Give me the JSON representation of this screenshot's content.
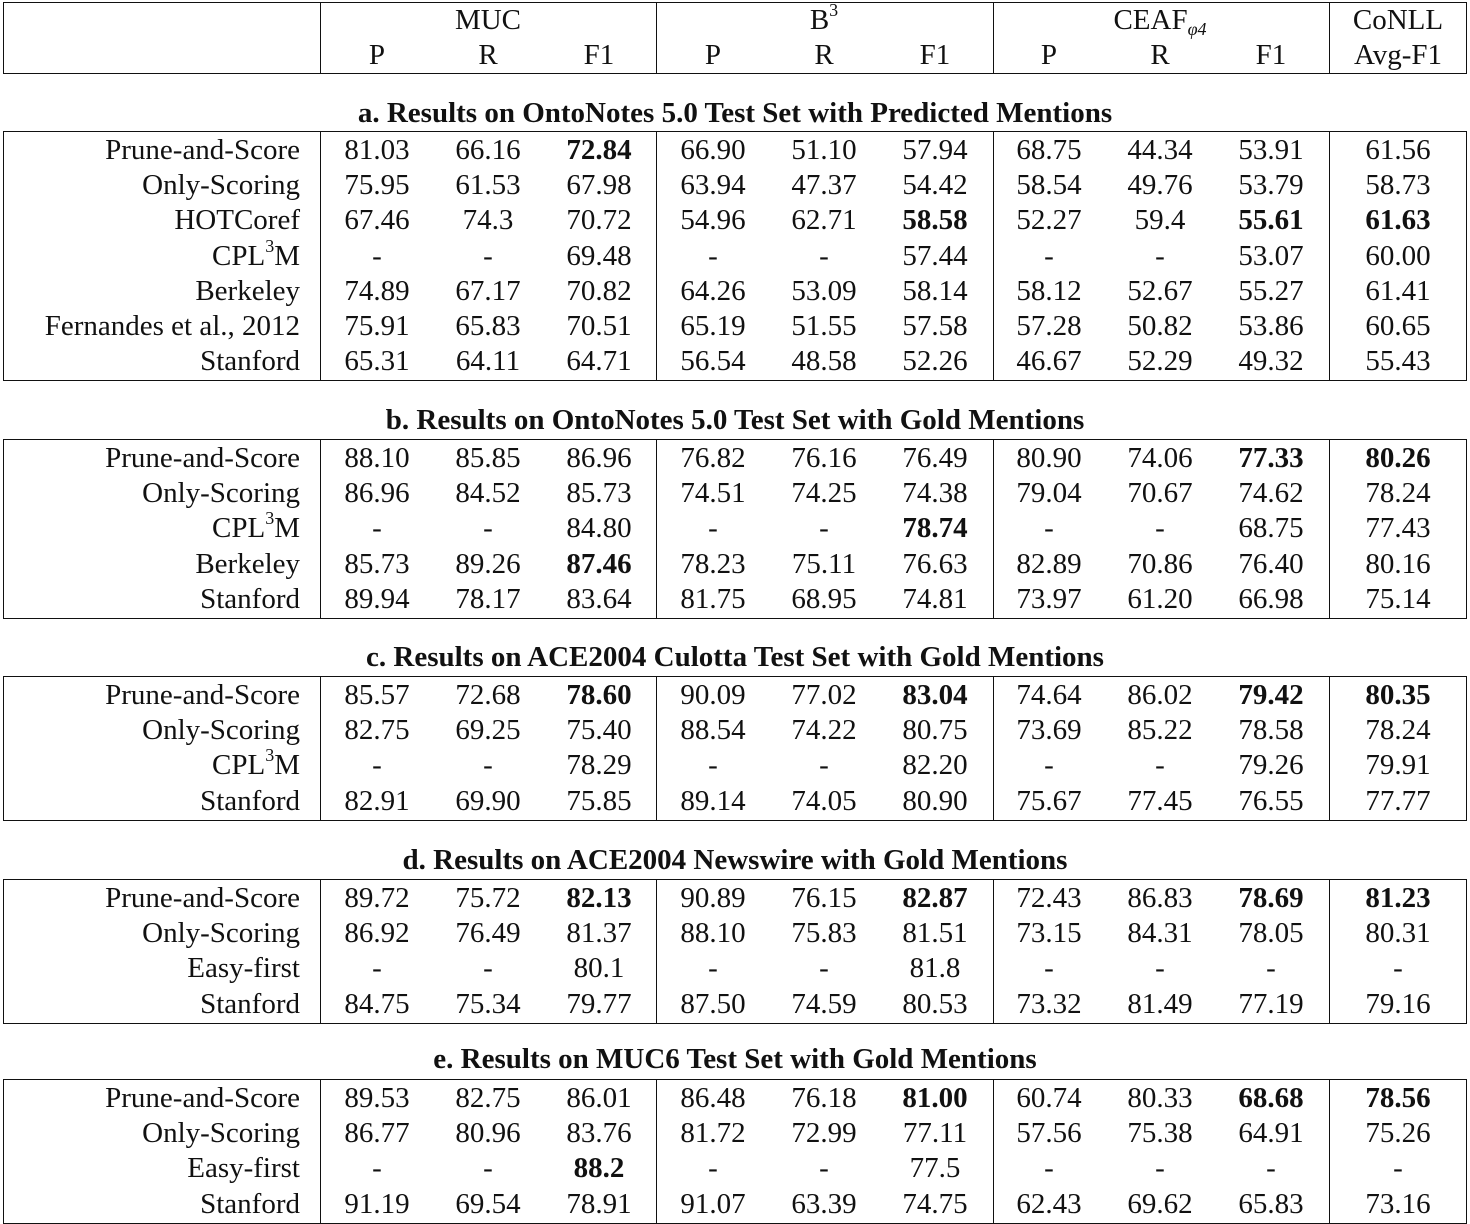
{
  "header": {
    "groups": [
      {
        "name": "MUC",
        "sup": "",
        "sub": ""
      },
      {
        "name": "B",
        "sup": "3",
        "sub": ""
      },
      {
        "name": "CEAF",
        "sup": "",
        "sub": "φ4"
      },
      {
        "name": "CoNLL",
        "sup": "",
        "sub": ""
      }
    ],
    "subcols": [
      "P",
      "R",
      "F1",
      "P",
      "R",
      "F1",
      "P",
      "R",
      "F1",
      "Avg-F1"
    ]
  },
  "sections": [
    {
      "title": "a. Results on OntoNotes 5.0 Test Set with Predicted Mentions",
      "rows": [
        {
          "name": "Prune-and-Score",
          "sup": "",
          "suffix": "",
          "values": [
            "81.03",
            "66.16",
            "72.84",
            "66.90",
            "51.10",
            "57.94",
            "68.75",
            "44.34",
            "53.91",
            "61.56"
          ],
          "bold": [
            2
          ]
        },
        {
          "name": "Only-Scoring",
          "sup": "",
          "suffix": "",
          "values": [
            "75.95",
            "61.53",
            "67.98",
            "63.94",
            "47.37",
            "54.42",
            "58.54",
            "49.76",
            "53.79",
            "58.73"
          ],
          "bold": []
        },
        {
          "name": "HOTCoref",
          "sup": "",
          "suffix": "",
          "values": [
            "67.46",
            "74.3",
            "70.72",
            "54.96",
            "62.71",
            "58.58",
            "52.27",
            "59.4",
            "55.61",
            "61.63"
          ],
          "bold": [
            5,
            8,
            9
          ]
        },
        {
          "name": "CPL",
          "sup": "3",
          "suffix": "M",
          "values": [
            "-",
            "-",
            "69.48",
            "-",
            "-",
            "57.44",
            "-",
            "-",
            "53.07",
            "60.00"
          ],
          "bold": []
        },
        {
          "name": "Berkeley",
          "sup": "",
          "suffix": "",
          "values": [
            "74.89",
            "67.17",
            "70.82",
            "64.26",
            "53.09",
            "58.14",
            "58.12",
            "52.67",
            "55.27",
            "61.41"
          ],
          "bold": []
        },
        {
          "name": "Fernandes et al., 2012",
          "sup": "",
          "suffix": "",
          "values": [
            "75.91",
            "65.83",
            "70.51",
            "65.19",
            "51.55",
            "57.58",
            "57.28",
            "50.82",
            "53.86",
            "60.65"
          ],
          "bold": []
        },
        {
          "name": "Stanford",
          "sup": "",
          "suffix": "",
          "values": [
            "65.31",
            "64.11",
            "64.71",
            "56.54",
            "48.58",
            "52.26",
            "46.67",
            "52.29",
            "49.32",
            "55.43"
          ],
          "bold": []
        }
      ]
    },
    {
      "title": "b. Results on OntoNotes 5.0 Test Set with Gold Mentions",
      "rows": [
        {
          "name": "Prune-and-Score",
          "sup": "",
          "suffix": "",
          "values": [
            "88.10",
            "85.85",
            "86.96",
            "76.82",
            "76.16",
            "76.49",
            "80.90",
            "74.06",
            "77.33",
            "80.26"
          ],
          "bold": [
            8,
            9
          ]
        },
        {
          "name": "Only-Scoring",
          "sup": "",
          "suffix": "",
          "values": [
            "86.96",
            "84.52",
            "85.73",
            "74.51",
            "74.25",
            "74.38",
            "79.04",
            "70.67",
            "74.62",
            "78.24"
          ],
          "bold": []
        },
        {
          "name": "CPL",
          "sup": "3",
          "suffix": "M",
          "values": [
            "-",
            "-",
            "84.80",
            "-",
            "-",
            "78.74",
            "-",
            "-",
            "68.75",
            "77.43"
          ],
          "bold": [
            5
          ]
        },
        {
          "name": "Berkeley",
          "sup": "",
          "suffix": "",
          "values": [
            "85.73",
            "89.26",
            "87.46",
            "78.23",
            "75.11",
            "76.63",
            "82.89",
            "70.86",
            "76.40",
            "80.16"
          ],
          "bold": [
            2
          ]
        },
        {
          "name": "Stanford",
          "sup": "",
          "suffix": "",
          "values": [
            "89.94",
            "78.17",
            "83.64",
            "81.75",
            "68.95",
            "74.81",
            "73.97",
            "61.20",
            "66.98",
            "75.14"
          ],
          "bold": []
        }
      ]
    },
    {
      "title": "c. Results on ACE2004 Culotta Test Set with Gold Mentions",
      "rows": [
        {
          "name": "Prune-and-Score",
          "sup": "",
          "suffix": "",
          "values": [
            "85.57",
            "72.68",
            "78.60",
            "90.09",
            "77.02",
            "83.04",
            "74.64",
            "86.02",
            "79.42",
            "80.35"
          ],
          "bold": [
            2,
            5,
            8,
            9
          ]
        },
        {
          "name": "Only-Scoring",
          "sup": "",
          "suffix": "",
          "values": [
            "82.75",
            "69.25",
            "75.40",
            "88.54",
            "74.22",
            "80.75",
            "73.69",
            "85.22",
            "78.58",
            "78.24"
          ],
          "bold": []
        },
        {
          "name": "CPL",
          "sup": "3",
          "suffix": "M",
          "values": [
            "-",
            "-",
            "78.29",
            "-",
            "-",
            "82.20",
            "-",
            "-",
            "79.26",
            "79.91"
          ],
          "bold": []
        },
        {
          "name": "Stanford",
          "sup": "",
          "suffix": "",
          "values": [
            "82.91",
            "69.90",
            "75.85",
            "89.14",
            "74.05",
            "80.90",
            "75.67",
            "77.45",
            "76.55",
            "77.77"
          ],
          "bold": []
        }
      ]
    },
    {
      "title": "d. Results on ACE2004 Newswire with Gold Mentions",
      "rows": [
        {
          "name": "Prune-and-Score",
          "sup": "",
          "suffix": "",
          "values": [
            "89.72",
            "75.72",
            "82.13",
            "90.89",
            "76.15",
            "82.87",
            "72.43",
            "86.83",
            "78.69",
            "81.23"
          ],
          "bold": [
            2,
            5,
            8,
            9
          ]
        },
        {
          "name": "Only-Scoring",
          "sup": "",
          "suffix": "",
          "values": [
            "86.92",
            "76.49",
            "81.37",
            "88.10",
            "75.83",
            "81.51",
            "73.15",
            "84.31",
            "78.05",
            "80.31"
          ],
          "bold": []
        },
        {
          "name": "Easy-first",
          "sup": "",
          "suffix": "",
          "values": [
            "-",
            "-",
            "80.1",
            "-",
            "-",
            "81.8",
            "-",
            "-",
            "-",
            "-"
          ],
          "bold": []
        },
        {
          "name": "Stanford",
          "sup": "",
          "suffix": "",
          "values": [
            "84.75",
            "75.34",
            "79.77",
            "87.50",
            "74.59",
            "80.53",
            "73.32",
            "81.49",
            "77.19",
            "79.16"
          ],
          "bold": []
        }
      ]
    },
    {
      "title": "e. Results on MUC6 Test Set with Gold Mentions",
      "rows": [
        {
          "name": "Prune-and-Score",
          "sup": "",
          "suffix": "",
          "values": [
            "89.53",
            "82.75",
            "86.01",
            "86.48",
            "76.18",
            "81.00",
            "60.74",
            "80.33",
            "68.68",
            "78.56"
          ],
          "bold": [
            5,
            8,
            9
          ]
        },
        {
          "name": "Only-Scoring",
          "sup": "",
          "suffix": "",
          "values": [
            "86.77",
            "80.96",
            "83.76",
            "81.72",
            "72.99",
            "77.11",
            "57.56",
            "75.38",
            "64.91",
            "75.26"
          ],
          "bold": []
        },
        {
          "name": "Easy-first",
          "sup": "",
          "suffix": "",
          "values": [
            "-",
            "-",
            "88.2",
            "-",
            "-",
            "77.5",
            "-",
            "-",
            "-",
            "-"
          ],
          "bold": [
            2
          ]
        },
        {
          "name": "Stanford",
          "sup": "",
          "suffix": "",
          "values": [
            "91.19",
            "69.54",
            "78.91",
            "91.07",
            "63.39",
            "74.75",
            "62.43",
            "69.62",
            "65.83",
            "73.16"
          ],
          "bold": []
        }
      ]
    }
  ]
}
